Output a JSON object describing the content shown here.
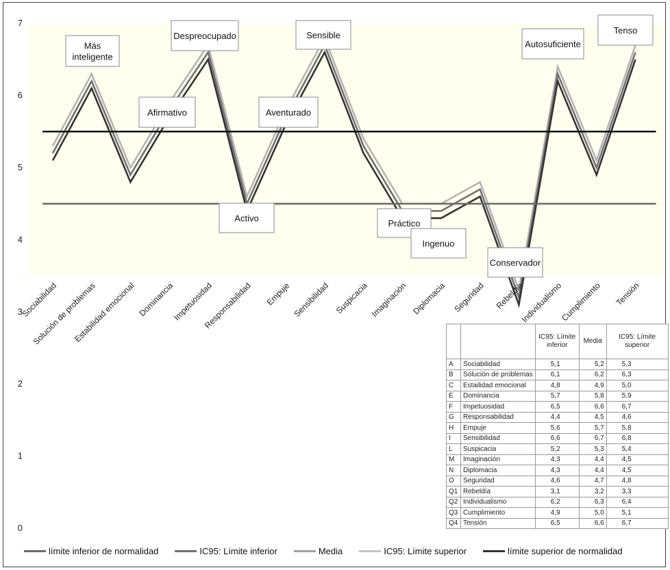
{
  "chart_data": {
    "type": "line",
    "ylim": [
      0,
      7
    ],
    "yticks": [
      "0",
      "1",
      "2",
      "3",
      "4",
      "5",
      "6",
      "7"
    ],
    "categories": [
      "Sociabilidad",
      "Solución de problemas",
      "Estabilidad emocional",
      "Dominancia",
      "Impetuosidad",
      "Responsabilidad",
      "Empuje",
      "Sensibilidad",
      "Suspicacia",
      "Imaginación",
      "Diplomacia",
      "Seguridad",
      "Rebeldía",
      "Individualismo",
      "Cumplimiento",
      "Tensión"
    ],
    "series": [
      {
        "name": "límite inferior de normalidad",
        "color": "#6a6a6a",
        "values": [
          4.5,
          4.5,
          4.5,
          4.5,
          4.5,
          4.5,
          4.5,
          4.5,
          4.5,
          4.5,
          4.5,
          4.5,
          4.5,
          4.5,
          4.5,
          4.5
        ]
      },
      {
        "name": "IC95: Límite inferior",
        "color": "#333333",
        "values": [
          5.1,
          6.1,
          4.8,
          5.7,
          6.5,
          4.4,
          5.6,
          6.6,
          5.2,
          4.3,
          4.3,
          4.6,
          3.1,
          6.2,
          4.9,
          6.5
        ]
      },
      {
        "name": "Media",
        "color": "#707070",
        "values": [
          5.2,
          6.2,
          4.9,
          5.8,
          6.6,
          4.5,
          5.7,
          6.7,
          5.3,
          4.4,
          4.4,
          4.7,
          3.2,
          6.3,
          5.0,
          6.6
        ]
      },
      {
        "name": "IC95: Límite superior",
        "color": "#b4b4b4",
        "values": [
          5.3,
          6.3,
          5.0,
          5.9,
          6.7,
          4.6,
          5.8,
          6.8,
          5.4,
          4.5,
          4.5,
          4.8,
          3.3,
          6.4,
          5.1,
          6.7
        ]
      },
      {
        "name": "límite superior de normalidad",
        "color": "#111111",
        "values": [
          5.5,
          5.5,
          5.5,
          5.5,
          5.5,
          5.5,
          5.5,
          5.5,
          5.5,
          5.5,
          5.5,
          5.5,
          5.5,
          5.5,
          5.5,
          5.5
        ]
      }
    ],
    "annotations": [
      {
        "label": "Más inteligente",
        "lines": [
          "Más",
          "inteligente"
        ],
        "category": "Solución de problemas"
      },
      {
        "label": "Afirmativo",
        "lines": [
          "Afirmativo"
        ],
        "category": "Dominancia"
      },
      {
        "label": "Despreocupado",
        "lines": [
          "Despreocupado"
        ],
        "category": "Impetuosidad"
      },
      {
        "label": "Activo",
        "lines": [
          "Activo"
        ],
        "category": "Responsabilidad"
      },
      {
        "label": "Aventurado",
        "lines": [
          "Aventurado"
        ],
        "category": "Empuje"
      },
      {
        "label": "Sensible",
        "lines": [
          "Sensible"
        ],
        "category": "Sensibilidad"
      },
      {
        "label": "Práctico",
        "lines": [
          "Práctico"
        ],
        "category": "Imaginación"
      },
      {
        "label": "Ingenuo",
        "lines": [
          "Ingenuo"
        ],
        "category": "Diplomacia"
      },
      {
        "label": "Conservador",
        "lines": [
          "Conservador"
        ],
        "category": "Rebeldía"
      },
      {
        "label": "Autosuficiente",
        "lines": [
          "Autosuficiente"
        ],
        "category": "Individualismo"
      },
      {
        "label": "Tenso",
        "lines": [
          "Tenso"
        ],
        "category": "Tensión"
      }
    ]
  },
  "table": {
    "headers": [
      "",
      "",
      "IC95: Límite inferior",
      "Media",
      "IC95: Límite superior"
    ],
    "rows": [
      [
        "A",
        "Sociabilidad",
        "5,1",
        "5,2",
        "5,3"
      ],
      [
        "B",
        "Solución de problemas",
        "6,1",
        "6,2",
        "6,3"
      ],
      [
        "C",
        "Estailidad emocional",
        "4,8",
        "4,9",
        "5,0"
      ],
      [
        "E",
        "Dominancia",
        "5,7",
        "5,8",
        "5,9"
      ],
      [
        "F",
        "Impetuosidad",
        "6,5",
        "6,6",
        "6,7"
      ],
      [
        "G",
        "Responsabilidad",
        "4,4",
        "4,5",
        "4,6"
      ],
      [
        "H",
        "Empuje",
        "5,6",
        "5,7",
        "5,8"
      ],
      [
        "I",
        "Sensibilidad",
        "6,6",
        "6,7",
        "6,8"
      ],
      [
        "L",
        "Suspicacia",
        "5,2",
        "5,3",
        "5,4"
      ],
      [
        "M",
        "Imaginación",
        "4,3",
        "4,4",
        "4,5"
      ],
      [
        "N",
        "Diplomacia",
        "4,3",
        "4,4",
        "4,5"
      ],
      [
        "O",
        "Seguridad",
        "4,6",
        "4,7",
        "4,8"
      ],
      [
        "Q1",
        "Rebeldía",
        "3,1",
        "3,2",
        "3,3"
      ],
      [
        "Q2",
        "Individualismo",
        "6,2",
        "6,3",
        "6,4"
      ],
      [
        "Q3",
        "Cumplimiento",
        "4,9",
        "5,0",
        "5,1"
      ],
      [
        "Q4",
        "Tensión",
        "6,5",
        "6,6",
        "6,7"
      ]
    ]
  },
  "legend": [
    {
      "label": "límite inferior de normalidad",
      "color": "#6a6a6a"
    },
    {
      "label": "IC95: Límite inferior",
      "color": "#707070"
    },
    {
      "label": "Media",
      "color": "#a0a0a0"
    },
    {
      "label": "IC95: Límite superior",
      "color": "#c4c4c4"
    },
    {
      "label": "límite superior de normalidad",
      "color": "#333333"
    }
  ]
}
